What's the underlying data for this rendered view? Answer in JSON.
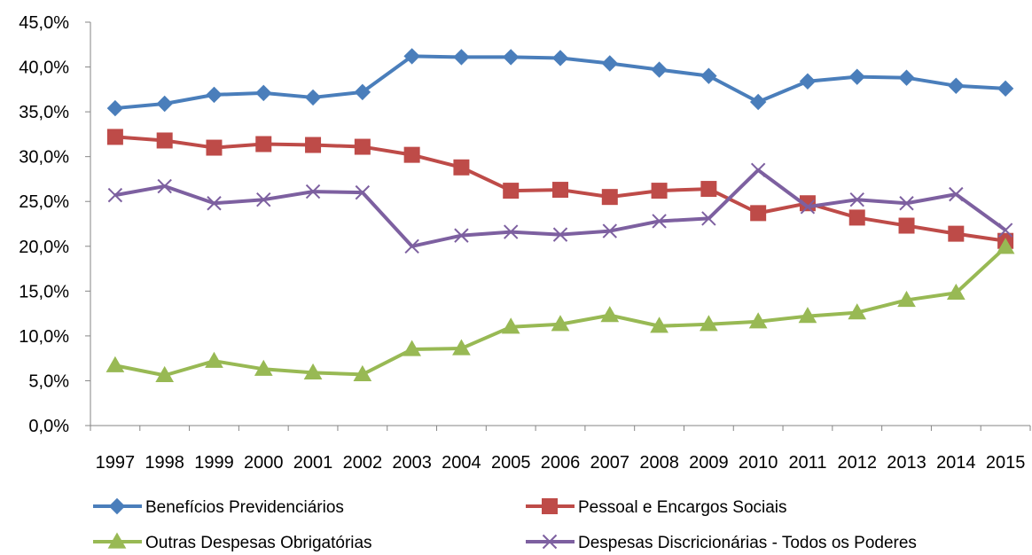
{
  "chart_data": {
    "type": "line",
    "title": "",
    "xlabel": "",
    "ylabel": "",
    "categories": [
      "1997",
      "1998",
      "1999",
      "2000",
      "2001",
      "2002",
      "2003",
      "2004",
      "2005",
      "2006",
      "2007",
      "2008",
      "2009",
      "2010",
      "2011",
      "2012",
      "2013",
      "2014",
      "2015"
    ],
    "ylim": [
      0,
      45
    ],
    "ytick_step": 5,
    "y_tick_labels": [
      "0,0%",
      "5,0%",
      "10,0%",
      "15,0%",
      "20,0%",
      "25,0%",
      "30,0%",
      "35,0%",
      "40,0%",
      "45,0%"
    ],
    "grid": false,
    "legend_position": "bottom",
    "series": [
      {
        "name": "Benefícios Previdenciários",
        "color": "#4a7ebb",
        "marker": "diamond",
        "values": [
          35.4,
          35.9,
          36.9,
          37.1,
          36.6,
          37.2,
          41.2,
          41.1,
          41.1,
          41.0,
          40.4,
          39.7,
          39.0,
          36.1,
          38.4,
          38.9,
          38.8,
          37.9,
          37.6
        ]
      },
      {
        "name": "Pessoal e Encargos Sociais",
        "color": "#be4b48",
        "marker": "square",
        "values": [
          32.2,
          31.8,
          31.0,
          31.4,
          31.3,
          31.1,
          30.2,
          28.8,
          26.2,
          26.3,
          25.5,
          26.2,
          26.4,
          23.7,
          24.8,
          23.2,
          22.3,
          21.4,
          20.6
        ]
      },
      {
        "name": "Outras Despesas Obrigatórias",
        "color": "#98b954",
        "marker": "triangle",
        "values": [
          6.7,
          5.6,
          7.2,
          6.3,
          5.9,
          5.7,
          8.5,
          8.6,
          11.0,
          11.3,
          12.3,
          11.1,
          11.3,
          11.6,
          12.2,
          12.6,
          14.0,
          14.8,
          19.9
        ]
      },
      {
        "name": "Despesas Discricionárias - Todos os Poderes",
        "color": "#7d60a0",
        "marker": "x",
        "values": [
          25.7,
          26.7,
          24.8,
          25.2,
          26.1,
          26.0,
          20.0,
          21.2,
          21.6,
          21.3,
          21.7,
          22.8,
          23.1,
          28.5,
          24.4,
          25.2,
          24.8,
          25.8,
          21.8
        ]
      }
    ]
  }
}
